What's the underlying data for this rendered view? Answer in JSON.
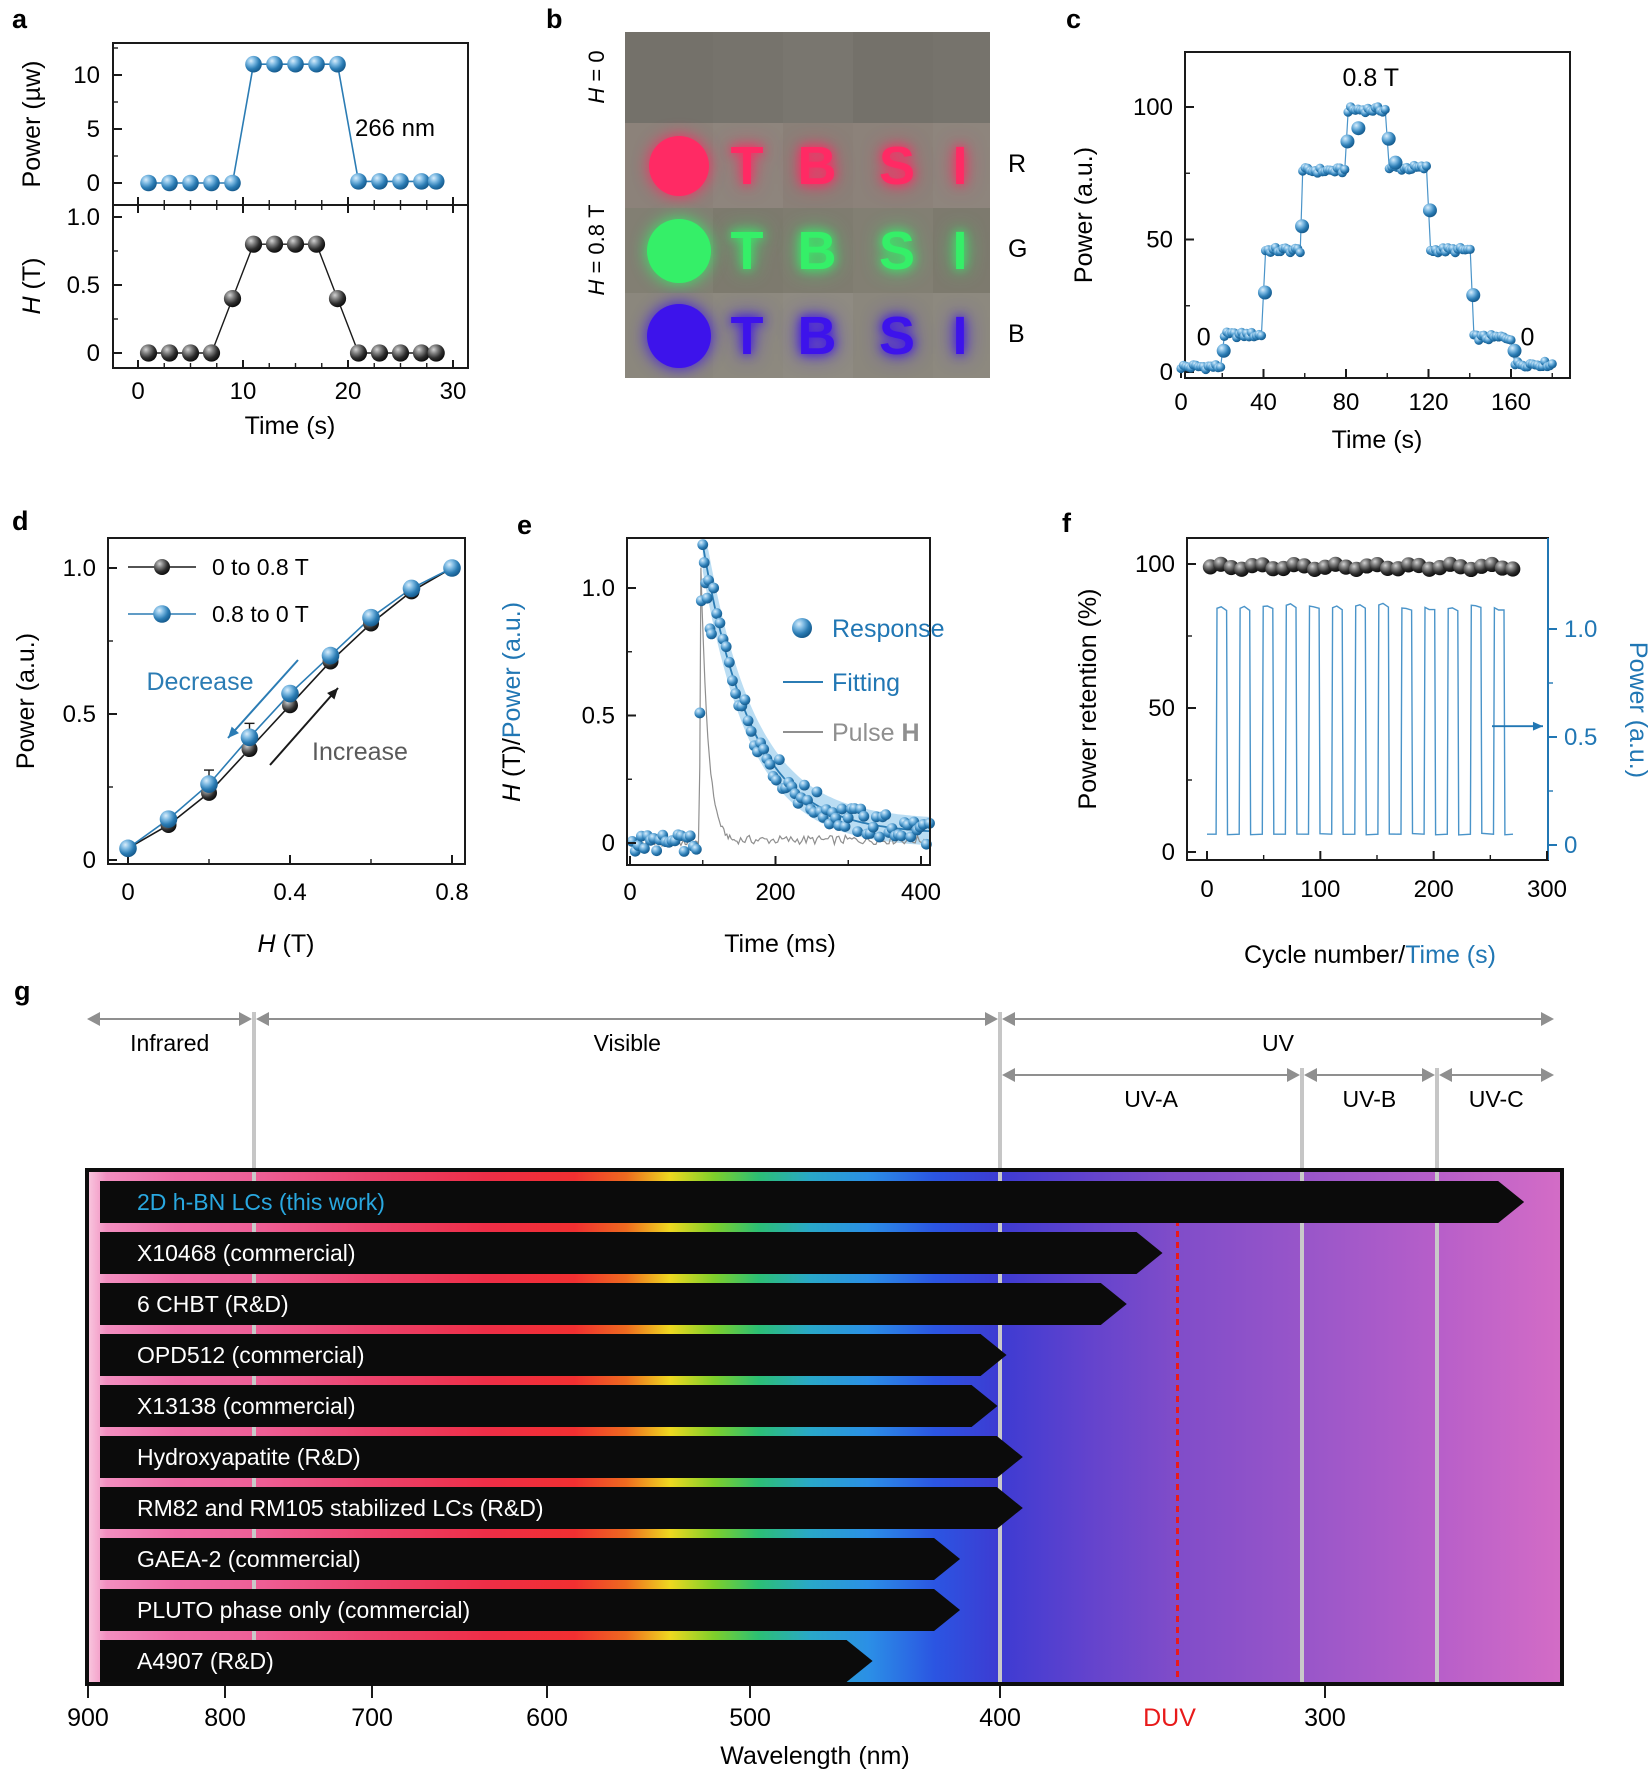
{
  "panel_labels": {
    "a": "a",
    "b": "b",
    "c": "c",
    "d": "d",
    "e": "e",
    "f": "f",
    "g": "g"
  },
  "colors": {
    "blue": "#2177b4",
    "blue_line": "#2b7cb4",
    "light_band": "#b3d9f2",
    "black": "#141414",
    "gray": "#999999",
    "axis": "#1a1a1a",
    "red": "#e81a1a",
    "guide_gray": "#c6c6c6",
    "this_work_blue": "#29a8e0"
  },
  "panel_b": {
    "left_labels": [
      {
        "text": "H = 0"
      },
      {
        "text": "H = 0.8 T"
      }
    ],
    "right_labels": [
      "R",
      "G",
      "B"
    ],
    "letters": [
      "T",
      "B",
      "S",
      "I"
    ],
    "rows": [
      {
        "name": "no-field",
        "bg": "#74716a",
        "color": null
      },
      {
        "name": "red-emission",
        "bg": "#8a8078",
        "color": "#ff2a64"
      },
      {
        "name": "green-emission",
        "bg": "#7d7a6e",
        "color": "#35ef68"
      },
      {
        "name": "blue-emission",
        "bg": "#8b877d",
        "color": "#3d13eb"
      }
    ]
  },
  "chart_data": [
    {
      "id": "a_top",
      "type": "line",
      "x": [
        1,
        3,
        5,
        7,
        9,
        11,
        13,
        15,
        17,
        19,
        21,
        23,
        25,
        27,
        28.4
      ],
      "y": [
        0,
        0,
        0,
        0,
        0,
        11,
        11,
        11,
        11,
        11,
        0.15,
        0.15,
        0.15,
        0.15,
        0.15
      ],
      "ylabel": "Power (µw)",
      "yticks": [
        0,
        5,
        10
      ],
      "ylim": [
        -1.6,
        15
      ],
      "annotation": "266 nm",
      "series_color": "blue"
    },
    {
      "id": "a_bottom",
      "type": "line",
      "x": [
        1,
        3,
        5,
        7,
        9,
        11,
        13,
        15,
        17,
        19,
        21,
        23,
        25,
        27,
        28.4
      ],
      "y": [
        0,
        0,
        0,
        0,
        0.4,
        0.8,
        0.8,
        0.8,
        0.8,
        0.4,
        0,
        0,
        0,
        0,
        0
      ],
      "ylabel": "H (T)",
      "yticks": [
        0,
        0.5,
        1.0
      ],
      "ylim": [
        -0.12,
        1.12
      ],
      "xticks": [
        0,
        10,
        20,
        30
      ],
      "xlim": [
        -2.4,
        31.4
      ],
      "xlabel": "Time (s)",
      "series_color": "black"
    },
    {
      "id": "c",
      "type": "steps",
      "xlabel": "Time (s)",
      "ylabel": "Power (a.u.)",
      "xticks": [
        0,
        40,
        80,
        120,
        160
      ],
      "xminor": [
        20,
        60,
        100,
        140,
        180
      ],
      "xlim": [
        -2,
        187
      ],
      "yticks": [
        0,
        50,
        100
      ],
      "yminor": [
        25,
        75
      ],
      "ylim": [
        -2.5,
        121
      ],
      "steps": [
        [
          0,
          20,
          2
        ],
        [
          21,
          40,
          14
        ],
        [
          41,
          58,
          46
        ],
        [
          59,
          80,
          76
        ],
        [
          81,
          100,
          99
        ],
        [
          101,
          120,
          77
        ],
        [
          121,
          141,
          46
        ],
        [
          142,
          161,
          13
        ],
        [
          162,
          180,
          3
        ]
      ],
      "transition_points": [
        [
          20.7,
          8
        ],
        [
          40.7,
          30
        ],
        [
          58.7,
          55
        ],
        [
          80.7,
          87
        ],
        [
          86,
          92
        ],
        [
          100.7,
          88
        ],
        [
          104,
          79
        ],
        [
          120.7,
          61
        ],
        [
          141.7,
          29
        ],
        [
          161.7,
          8
        ]
      ],
      "annotations": [
        {
          "text": "0.8 T",
          "t": 92,
          "v": 108,
          "size": 25
        },
        {
          "text": "0",
          "t": 11,
          "v": 10,
          "size": 25
        },
        {
          "text": "0",
          "t": 168,
          "v": 10,
          "size": 25
        }
      ]
    },
    {
      "id": "d",
      "type": "hysteresis",
      "xlabel": "H (T)",
      "ylabel": "Power (a.u.)",
      "xticks": [
        0,
        0.4,
        0.8
      ],
      "xminor": [
        0.2,
        0.6
      ],
      "yticks": [
        0,
        0.5,
        1.0
      ],
      "yminor": [
        0.25,
        0.75
      ],
      "x": [
        0,
        0.1,
        0.2,
        0.3,
        0.4,
        0.5,
        0.6,
        0.7,
        0.8
      ],
      "series": [
        {
          "name": "0 to 0.8 T",
          "color": "black",
          "values": [
            0.04,
            0.12,
            0.23,
            0.38,
            0.53,
            0.68,
            0.81,
            0.92,
            1.0
          ]
        },
        {
          "name": "0.8 to 0 T",
          "color": "blue",
          "values": [
            0.04,
            0.14,
            0.26,
            0.42,
            0.57,
            0.7,
            0.83,
            0.93,
            1.0
          ]
        }
      ],
      "annotations": [
        {
          "text": "Decrease",
          "color": "blue"
        },
        {
          "text": "Increase",
          "color": "#5a5a5a"
        }
      ]
    },
    {
      "id": "e",
      "type": "pulse-decay",
      "xlabel": "Time (ms)",
      "ylabel_parts": [
        {
          "text": "H (T)/",
          "color": "#000000"
        },
        {
          "text": "Power (a.u.)",
          "color": "#2177b4"
        }
      ],
      "xticks": [
        0,
        200,
        400
      ],
      "xminor": [
        100,
        300
      ],
      "xlim": [
        -8,
        420
      ],
      "yticks": [
        0,
        0.5,
        1.0
      ],
      "yminor": [
        0.25,
        0.75
      ],
      "ylim": [
        -0.09,
        1.2
      ],
      "legend": [
        {
          "label": "Response"
        },
        {
          "label": "Fitting"
        },
        {
          "label": "Pulse H"
        }
      ],
      "peak_time": 100,
      "peak_value": 1.17,
      "fit_tau": 68,
      "fit_baseline": 0.035,
      "pulse_peak": 1.08,
      "pulse_tau": 10
    },
    {
      "id": "f",
      "type": "cycling",
      "xlabel_parts": [
        {
          "text": "Cycle number/",
          "color": "#000000"
        },
        {
          "text": "Time (s)",
          "color": "#2177b4"
        }
      ],
      "ylabel_left": "Power retention (%)",
      "ylabel_right": "Power (a.u.)",
      "xticks": [
        0,
        100,
        200,
        300
      ],
      "xminor": [
        50,
        150,
        250
      ],
      "xlim": [
        -18,
        301
      ],
      "yticks_left": [
        0,
        50,
        100
      ],
      "yminor_left": [
        25,
        75
      ],
      "ylim_left": [
        -3,
        109
      ],
      "yticks_right": [
        0,
        0.5,
        1.0
      ],
      "yminor_right": [
        0.25,
        0.75
      ],
      "ylim_right": [
        -0.075,
        1.42
      ],
      "retention_avg": 99,
      "n_retention_points": 30,
      "cycle_count": 13,
      "wave_high": 1.1,
      "wave_low": 0.05,
      "wave_period_s": 20.4,
      "wave_start_s": 8
    },
    {
      "id": "g",
      "type": "spectrum-range",
      "xlabel": "Wavelength (nm)",
      "axis_ticks": [
        900,
        800,
        700,
        600,
        500,
        400,
        300
      ],
      "duv": {
        "label": "DUV",
        "nm": 346
      },
      "regions": [
        {
          "label": "Infrared",
          "from_nm": 900,
          "to_nm": 780
        },
        {
          "label": "Visible",
          "from_nm": 780,
          "to_nm": 400
        },
        {
          "label": "UV",
          "from_nm": 400,
          "to_nm": 240
        }
      ],
      "sub_regions": [
        {
          "label": "UV-A",
          "from_nm": 400,
          "to_nm": 307
        },
        {
          "label": "UV-B",
          "from_nm": 307,
          "to_nm": 272
        },
        {
          "label": "UV-C",
          "from_nm": 272,
          "to_nm": 240
        }
      ],
      "materials": [
        {
          "label": "2D h-BN LCs (this work)",
          "to_nm": 250,
          "this_work": true
        },
        {
          "label": "X10468 (commercial)",
          "to_nm": 350
        },
        {
          "label": "6 CHBT (R&D)",
          "to_nm": 361
        },
        {
          "label": "OPD512 (commercial)",
          "to_nm": 398
        },
        {
          "label": "X13138 (commercial)",
          "to_nm": 401
        },
        {
          "label": "Hydroxyapatite (R&D)",
          "to_nm": 393
        },
        {
          "label": "RM82 and RM105 stabilized LCs (R&D)",
          "to_nm": 393
        },
        {
          "label": "GAEA-2 (commercial)",
          "to_nm": 416
        },
        {
          "label": "PLUTO phase only (commercial)",
          "to_nm": 416
        },
        {
          "label": "A4907 (R&D)",
          "to_nm": 451
        }
      ],
      "nm_anchors": [
        [
          900,
          0.002
        ],
        [
          800,
          0.0947
        ],
        [
          700,
          0.1941
        ],
        [
          600,
          0.3124
        ],
        [
          500,
          0.4497
        ],
        [
          400,
          0.6187
        ],
        [
          300,
          0.8384
        ],
        [
          240,
          1.0
        ]
      ],
      "spectrum_stops": [
        [
          0,
          "#f8c4dd"
        ],
        [
          0.012,
          "#f28fc0"
        ],
        [
          0.06,
          "#ef6ba6"
        ],
        [
          0.115,
          "#ee5f96"
        ],
        [
          0.2,
          "#ec4068"
        ],
        [
          0.27,
          "#ee2e47"
        ],
        [
          0.33,
          "#f12f31"
        ],
        [
          0.365,
          "#ee6a1f"
        ],
        [
          0.395,
          "#eed820"
        ],
        [
          0.425,
          "#7ecf2b"
        ],
        [
          0.455,
          "#2cbf74"
        ],
        [
          0.49,
          "#29a8c8"
        ],
        [
          0.53,
          "#2b8fe6"
        ],
        [
          0.575,
          "#2b55e2"
        ],
        [
          0.619,
          "#3d3bd2"
        ],
        [
          0.68,
          "#6343cd"
        ],
        [
          0.736,
          "#7f4cc9"
        ],
        [
          0.838,
          "#9c57c9"
        ],
        [
          0.92,
          "#b85fc9"
        ],
        [
          1,
          "#d36cc6"
        ]
      ]
    }
  ]
}
